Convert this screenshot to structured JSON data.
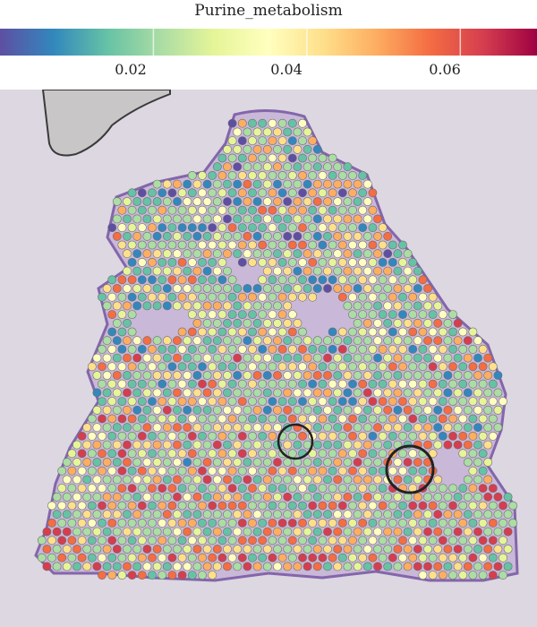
{
  "figure": {
    "colorbar": {
      "title": "Purine_metabolism",
      "ticks": [
        "0.02",
        "0.04",
        "0.06"
      ],
      "tick_values": [
        0.02,
        0.04,
        0.06
      ],
      "range": [
        0.0,
        0.07
      ],
      "colormap": "Spectral (reversed)",
      "stops": [
        "#5e4fa2",
        "#3288bd",
        "#66c2a5",
        "#abdda4",
        "#e6f598",
        "#ffffbf",
        "#fee08b",
        "#fdae61",
        "#f46d43",
        "#d53e4f",
        "#9e0142"
      ]
    },
    "panel": {
      "background_color": "#dcd7e1",
      "tissue_stain_color": "#7b5aa6",
      "spot_edge_color": "#6b6b6b"
    }
  }
}
